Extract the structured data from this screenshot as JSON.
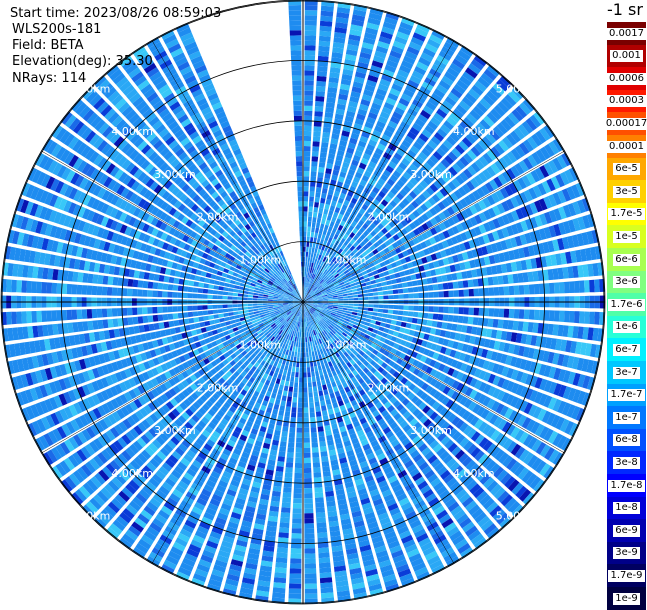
{
  "header": {
    "start_time": "Start time: 2023/08/26 08:59:03",
    "instrument": "WLS200s-181",
    "field": "Field: BETA",
    "elevation": "Elevation(deg): 35.30",
    "nrays": "NRays: 114"
  },
  "colorbar": {
    "unit_label": "-1 sr",
    "labels": [
      "0.0017",
      "0.001",
      "0.0006",
      "0.0003",
      "0.00017",
      "0.0001",
      "6e-5",
      "3e-5",
      "1.7e-5",
      "1e-5",
      "6e-6",
      "3e-6",
      "1.7e-6",
      "1e-6",
      "6e-7",
      "3e-7",
      "1.7e-7",
      "1e-7",
      "6e-8",
      "3e-8",
      "1.7e-8",
      "1e-8",
      "6e-9",
      "3e-9",
      "1.7e-9",
      "1e-9"
    ],
    "colors": [
      "#7a0000",
      "#b00000",
      "#e00000",
      "#ff1a00",
      "#ff5000",
      "#ff8000",
      "#ffa800",
      "#ffd000",
      "#ffff00",
      "#d8ff20",
      "#a8ff50",
      "#80ff80",
      "#50ffa8",
      "#28ffd8",
      "#00f0ff",
      "#00c8ff",
      "#00a0ff",
      "#0078ff",
      "#0050ff",
      "#0028ff",
      "#0000ff",
      "#0000d8",
      "#0000b0",
      "#000088",
      "#000060",
      "#000040"
    ]
  },
  "chart_data": {
    "type": "ppi",
    "field": "BETA",
    "range_unit": "km",
    "ring_ranges_km": [
      1,
      2,
      3,
      4,
      5
    ],
    "ring_labels": [
      "1.00km",
      "2.00km",
      "3.00km",
      "4.00km",
      "5.00km"
    ],
    "max_range_km": 5.0,
    "nrays": 114,
    "missing_sector_deg": [
      337,
      358
    ],
    "scale": "log",
    "value_range": [
      1e-09,
      0.0017
    ],
    "dominant_value_range": [
      1e-08,
      1.7e-07
    ]
  },
  "colors": {
    "background": "#ffffff",
    "grid": "#000000",
    "ray_gap": "#ffffff"
  }
}
